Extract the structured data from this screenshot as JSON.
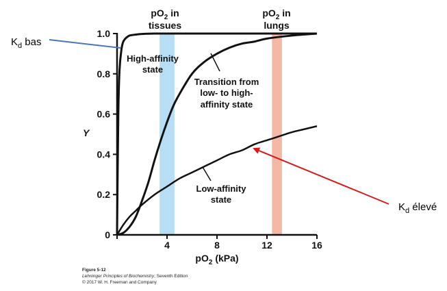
{
  "chart_data": {
    "type": "line",
    "title": "",
    "xlabel_main": "pO",
    "xlabel_sub": "2",
    "xlabel_unit": "(kPa)",
    "ylabel": "Y",
    "xlim": [
      0,
      16
    ],
    "ylim": [
      0,
      1.0
    ],
    "x_ticks": [
      0,
      4,
      8,
      12,
      16
    ],
    "x_tick_labels": [
      "4",
      "8",
      "12",
      "16"
    ],
    "y_ticks": [
      0,
      0.2,
      0.4,
      0.6,
      0.8,
      1.0
    ],
    "y_tick_labels": [
      "0",
      "0.2",
      "0.4",
      "0.6",
      "0.8",
      "1.0"
    ],
    "grid": false,
    "legend": "none",
    "series": [
      {
        "name": "High-affinity state",
        "x": [
          0,
          0.1,
          0.2,
          0.35,
          0.5,
          0.75,
          1,
          1.5,
          2,
          3,
          4,
          6,
          8,
          10,
          12,
          14,
          16
        ],
        "y": [
          0,
          0.6,
          0.82,
          0.92,
          0.96,
          0.98,
          0.99,
          0.995,
          0.998,
          1.0,
          1.0,
          1.0,
          1.0,
          1.0,
          1.0,
          1.0,
          1.0
        ]
      },
      {
        "name": "Transition from low- to high-affinity state",
        "x": [
          0,
          0.5,
          1,
          1.5,
          2,
          2.5,
          3,
          3.5,
          4,
          4.5,
          5,
          6,
          7,
          8,
          9,
          10,
          11,
          12,
          14,
          16
        ],
        "y": [
          0,
          0.01,
          0.04,
          0.09,
          0.17,
          0.26,
          0.37,
          0.47,
          0.56,
          0.64,
          0.7,
          0.8,
          0.86,
          0.9,
          0.93,
          0.95,
          0.96,
          0.975,
          0.99,
          1.0
        ]
      },
      {
        "name": "Low-affinity state",
        "x": [
          0,
          0.5,
          1,
          1.5,
          2,
          3,
          4,
          5,
          6,
          7,
          8,
          9,
          10,
          11,
          12,
          13,
          14,
          15,
          16
        ],
        "y": [
          0,
          0.05,
          0.09,
          0.12,
          0.15,
          0.2,
          0.24,
          0.28,
          0.31,
          0.34,
          0.37,
          0.4,
          0.42,
          0.45,
          0.47,
          0.49,
          0.51,
          0.525,
          0.54
        ]
      }
    ],
    "bands": [
      {
        "name": "pO2 in tissues",
        "x0": 3.4,
        "x1": 4.6,
        "color": "#b8def5",
        "label_main": "pO",
        "label_sub": "2",
        "label_tail": " in",
        "label_line2": "tissues"
      },
      {
        "name": "pO2 in lungs",
        "x0": 12.4,
        "x1": 13.2,
        "color": "#f4b9a4",
        "label_main": "pO",
        "label_sub": "2",
        "label_tail": " in",
        "label_line2": "lungs"
      }
    ],
    "curve_labels": {
      "high": [
        "High-affinity",
        "state"
      ],
      "transition": [
        "Transition from",
        "low- to high-",
        "affinity state"
      ],
      "low": [
        "Low-affinity",
        "state"
      ]
    }
  },
  "annotations": {
    "kd_low": {
      "main": "K",
      "sub": "d",
      "tail": " bas",
      "arrow_color": "#4a76b8"
    },
    "kd_high": {
      "main": "K",
      "sub": "d",
      "tail": " élevé",
      "arrow_color": "#d41c1c"
    }
  },
  "caption": {
    "figure": "Figure 5-12",
    "book": "Lehninger Principles of Biochemistry",
    "edition": ", Seventh Edition",
    "copyright": "© 2017 W. H. Freeman and Company"
  }
}
